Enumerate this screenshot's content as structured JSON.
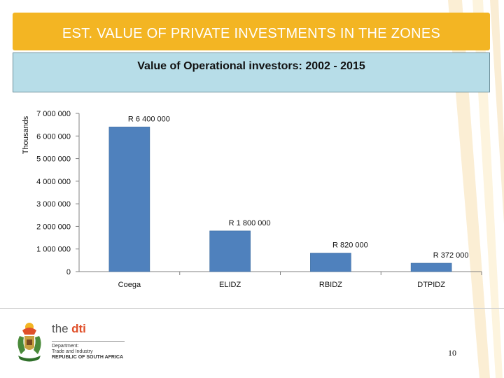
{
  "header": {
    "title": "EST. VALUE OF PRIVATE INVESTMENTS IN THE ZONES"
  },
  "chart_data": {
    "type": "bar",
    "title": "Value of Operational investors: 2002 - 2015",
    "xlabel": "",
    "ylabel": "Thousands",
    "categories": [
      "Coega",
      "ELIDZ",
      "RBIDZ",
      "DTPIDZ"
    ],
    "values": [
      6400000,
      1800000,
      820000,
      372000
    ],
    "data_labels": [
      "R 6 400 000",
      "R 1 800 000",
      "R 820 000",
      "R 372 000"
    ],
    "ylim": [
      0,
      7000000
    ],
    "yticks": [
      0,
      1000000,
      2000000,
      3000000,
      4000000,
      5000000,
      6000000,
      7000000
    ],
    "ytick_labels": [
      "0",
      "1 000 000",
      "2 000 000",
      "3 000 000",
      "4 000 000",
      "5 000 000",
      "6 000 000",
      "7 000 000"
    ],
    "grid": false,
    "legend": "none",
    "bar_color": "#4f81bd"
  },
  "footer": {
    "logo_the": "the",
    "logo_brand": "dti",
    "logo_line1": "Department:",
    "logo_line2": "Trade and Industry",
    "logo_line3": "REPUBLIC OF SOUTH AFRICA",
    "page_number": "10"
  },
  "colors": {
    "title_bar": "#f3b523",
    "subtitle_box": "#b7dde8",
    "accent_orange": "#e0502a"
  }
}
